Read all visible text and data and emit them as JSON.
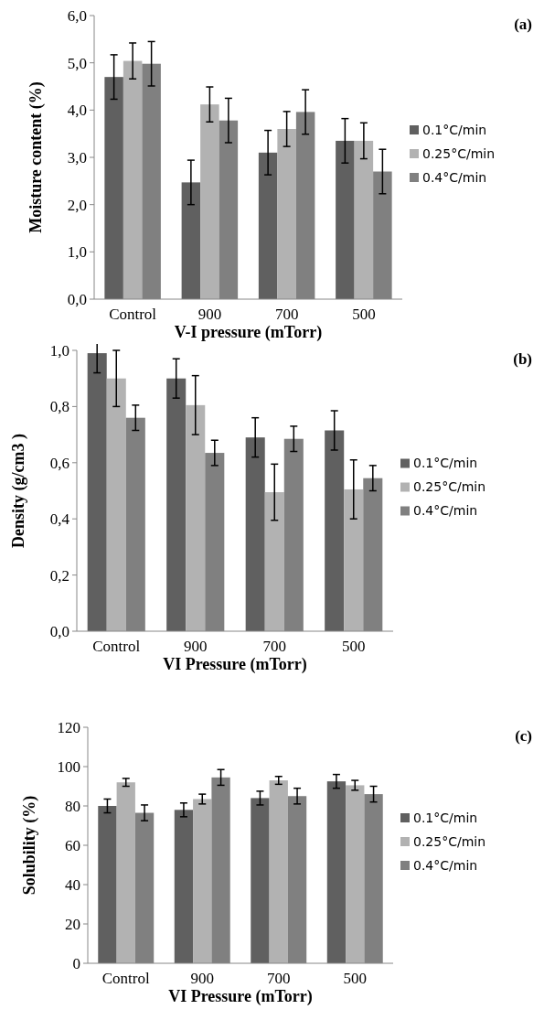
{
  "chart_data": [
    {
      "type": "bar",
      "ylabel": "Moisture content (%)",
      "xlabel": "V-I pressure (mTorr)",
      "annotations": [
        "(a)"
      ],
      "categories": [
        "Control",
        "900",
        "700",
        "500"
      ],
      "legend": "right",
      "ylim": [
        0,
        6
      ],
      "yticks": [
        {
          "value": 0,
          "label": "0,0"
        },
        {
          "value": 1,
          "label": "1,0"
        },
        {
          "value": 2,
          "label": "2,0"
        },
        {
          "value": 3,
          "label": "3,0"
        },
        {
          "value": 4,
          "label": "4,0"
        },
        {
          "value": 5,
          "label": "5,0"
        },
        {
          "value": 6,
          "label": "6,0"
        }
      ],
      "series": [
        {
          "name": "0.1°C/min",
          "color": "#606060",
          "values": [
            4.7,
            2.47,
            3.1,
            3.35
          ],
          "errors": [
            0.47,
            0.47,
            0.47,
            0.47
          ]
        },
        {
          "name": "0.25°C/min",
          "color": "#b2b2b2",
          "values": [
            5.04,
            4.12,
            3.6,
            3.35
          ],
          "errors": [
            0.38,
            0.37,
            0.37,
            0.38
          ]
        },
        {
          "name": "0.4°C/min",
          "color": "#808080",
          "values": [
            4.98,
            3.78,
            3.96,
            2.7
          ],
          "errors": [
            0.47,
            0.47,
            0.47,
            0.47
          ]
        }
      ]
    },
    {
      "type": "bar",
      "ylabel": "Density (g/cm3 )",
      "xlabel": "VI Pressure (mTorr)",
      "annotations": [
        "(b)"
      ],
      "categories": [
        "Control",
        "900",
        "700",
        "500"
      ],
      "legend": "right",
      "ylim": [
        0,
        1
      ],
      "yticks": [
        {
          "value": 0,
          "label": "0,0"
        },
        {
          "value": 0.2,
          "label": "0,2"
        },
        {
          "value": 0.4,
          "label": "0,4"
        },
        {
          "value": 0.6,
          "label": "0,6"
        },
        {
          "value": 0.8,
          "label": "0,8"
        },
        {
          "value": 1,
          "label": "1,0"
        }
      ],
      "series": [
        {
          "name": "0.1°C/min",
          "color": "#606060",
          "values": [
            0.99,
            0.9,
            0.69,
            0.715
          ],
          "errors": [
            0.07,
            0.07,
            0.07,
            0.07
          ]
        },
        {
          "name": "0.25°C/min",
          "color": "#b2b2b2",
          "values": [
            0.9,
            0.805,
            0.495,
            0.505
          ],
          "errors": [
            0.1,
            0.105,
            0.1,
            0.105
          ]
        },
        {
          "name": "0.4°C/min",
          "color": "#808080",
          "values": [
            0.76,
            0.635,
            0.685,
            0.545
          ],
          "errors": [
            0.045,
            0.045,
            0.045,
            0.045
          ]
        }
      ]
    },
    {
      "type": "bar",
      "ylabel": "Solubility (%)",
      "xlabel": "VI Pressure (mTorr)",
      "annotations": [
        "(c)"
      ],
      "categories": [
        "Control",
        "900",
        "700",
        "500"
      ],
      "legend": "right",
      "ylim": [
        0,
        120
      ],
      "yticks": [
        0,
        20,
        40,
        60,
        80,
        100,
        120
      ],
      "series": [
        {
          "name": "0.1°C/min",
          "color": "#606060",
          "values": [
            80,
            78,
            84,
            92.5
          ],
          "errors": [
            3.5,
            3.5,
            3.5,
            3.5
          ]
        },
        {
          "name": "0.25°C/min",
          "color": "#b2b2b2",
          "values": [
            92,
            83.5,
            93,
            90.5
          ],
          "errors": [
            2,
            2.5,
            2,
            2.5
          ]
        },
        {
          "name": "0.4°C/min",
          "color": "#808080",
          "values": [
            76.5,
            94.5,
            85,
            86
          ],
          "errors": [
            4,
            4,
            4,
            4
          ]
        }
      ]
    }
  ]
}
